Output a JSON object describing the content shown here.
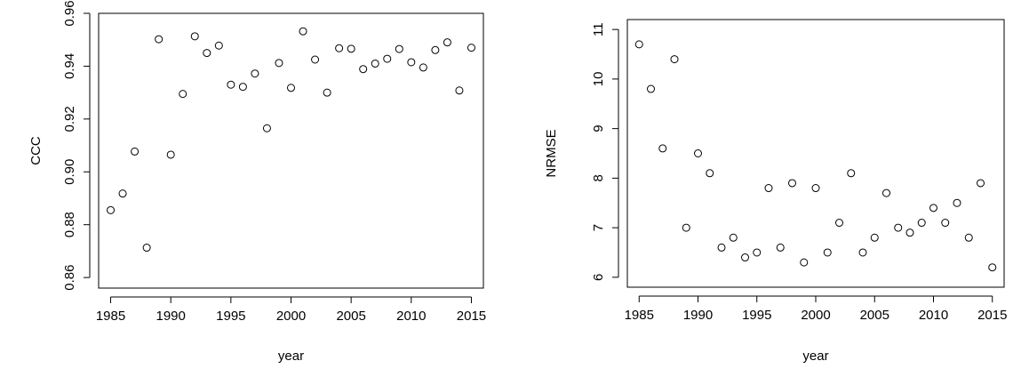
{
  "chart_data": [
    {
      "type": "scatter",
      "xlabel": "year",
      "ylabel": "CCC",
      "xlim": [
        1984,
        2016
      ],
      "ylim": [
        0.856,
        0.96
      ],
      "x_ticks": [
        "1985",
        "1990",
        "1995",
        "2000",
        "2005",
        "2010",
        "2015"
      ],
      "y_ticks": [
        "0.86",
        "0.88",
        "0.90",
        "0.92",
        "0.94",
        "0.96"
      ],
      "series": [
        {
          "x": [
            1985,
            1986,
            1987,
            1988,
            1989,
            1990,
            1991,
            1992,
            1993,
            1994,
            1995,
            1996,
            1997,
            1998,
            1999,
            2000,
            2001,
            2002,
            2003,
            2004,
            2005,
            2006,
            2007,
            2008,
            2009,
            2010,
            2011,
            2012,
            2013,
            2014,
            2015
          ],
          "y": [
            0.8855,
            0.8918,
            0.9077,
            0.8713,
            0.9502,
            0.9065,
            0.9295,
            0.9513,
            0.945,
            0.9478,
            0.933,
            0.9322,
            0.9372,
            0.9165,
            0.9412,
            0.9318,
            0.9532,
            0.9425,
            0.93,
            0.9468,
            0.9466,
            0.9389,
            0.941,
            0.9428,
            0.9465,
            0.9415,
            0.9395,
            0.9461,
            0.949,
            0.9308,
            0.947
          ]
        }
      ]
    },
    {
      "type": "scatter",
      "xlabel": "year",
      "ylabel": "NRMSE",
      "xlim": [
        1984,
        2016
      ],
      "ylim": [
        5.8,
        11.2
      ],
      "x_ticks": [
        "1985",
        "1990",
        "1995",
        "2000",
        "2005",
        "2010",
        "2015"
      ],
      "y_ticks": [
        "6",
        "7",
        "8",
        "9",
        "10",
        "11"
      ],
      "series": [
        {
          "x": [
            1985,
            1986,
            1987,
            1988,
            1989,
            1990,
            1991,
            1992,
            1993,
            1994,
            1995,
            1996,
            1997,
            1998,
            1999,
            2000,
            2001,
            2002,
            2003,
            2004,
            2005,
            2006,
            2007,
            2008,
            2009,
            2010,
            2011,
            2012,
            2013,
            2014,
            2015
          ],
          "y": [
            10.7,
            9.8,
            8.6,
            10.4,
            7.0,
            8.5,
            8.1,
            6.6,
            6.8,
            6.4,
            6.5,
            7.8,
            6.6,
            7.9,
            6.3,
            7.8,
            6.5,
            7.1,
            8.1,
            6.5,
            6.8,
            7.7,
            7.0,
            6.9,
            7.1,
            7.4,
            7.1,
            7.5,
            6.8,
            7.9,
            6.2
          ]
        }
      ]
    }
  ]
}
